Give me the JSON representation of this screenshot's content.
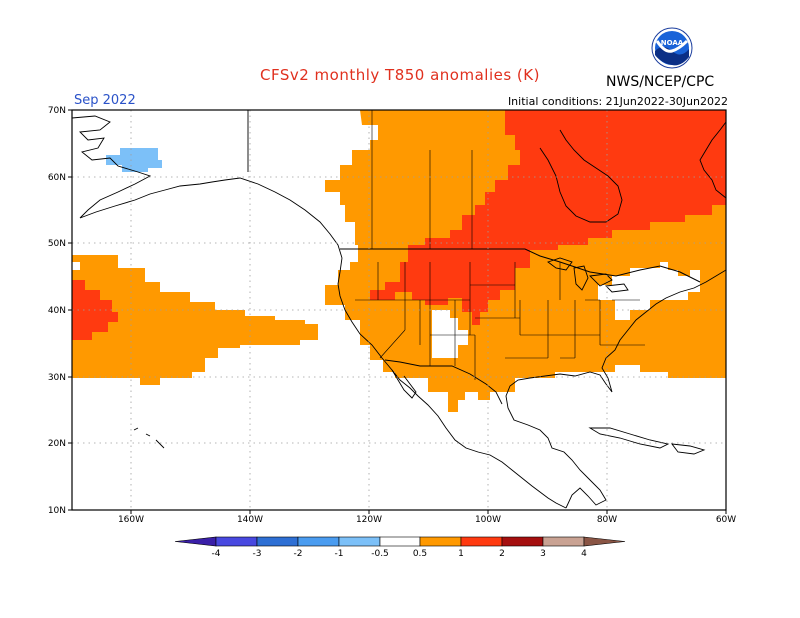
{
  "header": {
    "title": "CFSv2 monthly T850 anomalies (K)",
    "agency": "NWS/NCEP/CPC",
    "logo_text": "NOAA",
    "month": "Sep 2022",
    "initial_conditions": "Initial conditions: 21Jun2022-30Jun2022"
  },
  "axes": {
    "lat_labels": [
      "70N",
      "60N",
      "50N",
      "40N",
      "30N",
      "20N",
      "10N"
    ],
    "lon_labels": [
      "160W",
      "140W",
      "120W",
      "100W",
      "80W",
      "60W"
    ]
  },
  "legend": {
    "labels": [
      "-4",
      "-3",
      "-2",
      "-1",
      "-0.5",
      "0.5",
      "1",
      "2",
      "3",
      "4"
    ],
    "colors": [
      "#3a1fa8",
      "#4848e0",
      "#2e6fd4",
      "#4a9cf0",
      "#7cc0f8",
      "#ffffff",
      "#ff9900",
      "#ff3a10",
      "#a50f0f",
      "#c9a293",
      "#8a5545"
    ]
  },
  "colors": {
    "warm_05_1": "#ff9900",
    "warm_1_2": "#ff3a10",
    "cool_05_1": "#7cc0f8",
    "title": "#e0301e",
    "month": "#2a52c8"
  }
}
